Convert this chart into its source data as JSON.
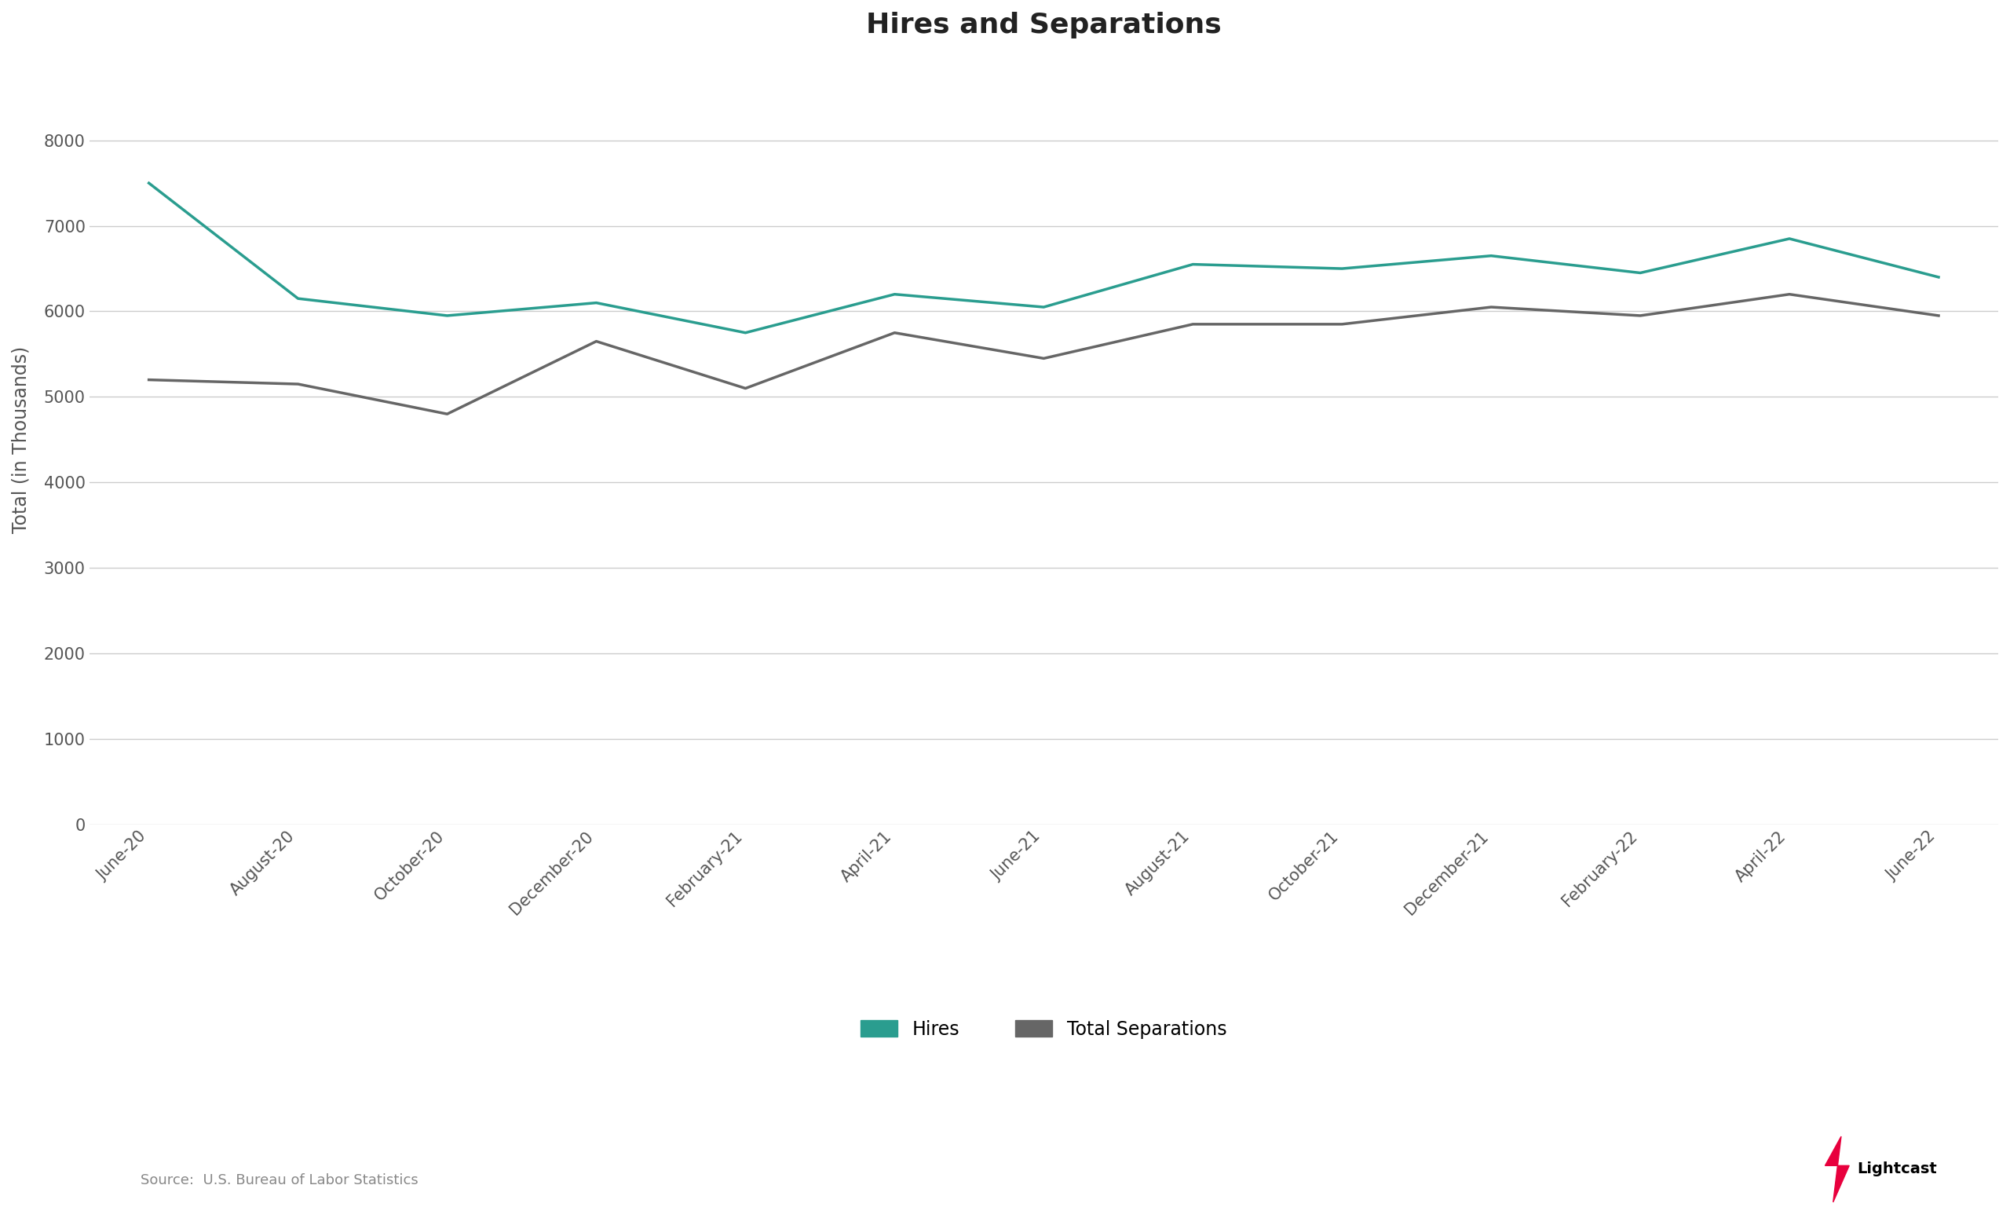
{
  "title": "Hires and Separations",
  "ylabel": "Total (in Thousands)",
  "source": "Source:  U.S. Bureau of Labor Statistics",
  "x_labels": [
    "June-20",
    "August-20",
    "October-20",
    "December-20",
    "February-21",
    "April-21",
    "June-21",
    "August-21",
    "October-21",
    "December-21",
    "February-22",
    "April-22",
    "June-22"
  ],
  "hires": [
    7500,
    6150,
    5950,
    6100,
    5750,
    6200,
    6050,
    6550,
    6500,
    6650,
    6450,
    6850,
    6400
  ],
  "separations": [
    5200,
    5150,
    4800,
    5650,
    5650,
    5100,
    5750,
    5450,
    5850,
    5950,
    6050,
    5950,
    6200,
    6250,
    5950
  ],
  "sep_indices": [
    0,
    0.5,
    1,
    2,
    3,
    4,
    5,
    6,
    7,
    8,
    9,
    10,
    11,
    11.5,
    12
  ],
  "hires_color": "#2a9d8f",
  "separations_color": "#666666",
  "background_color": "#ffffff",
  "grid_color": "#cccccc",
  "title_fontsize": 26,
  "label_fontsize": 17,
  "tick_fontsize": 15,
  "legend_fontsize": 17,
  "ylim": [
    0,
    9000
  ],
  "yticks": [
    0,
    1000,
    2000,
    3000,
    4000,
    5000,
    6000,
    7000,
    8000
  ],
  "line_width": 2.5
}
